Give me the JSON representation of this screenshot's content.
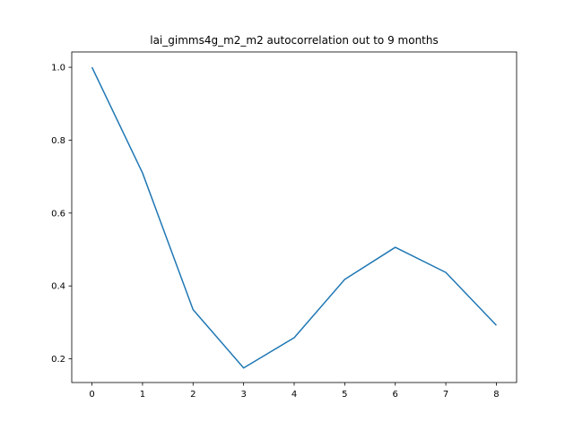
{
  "chart_data": {
    "type": "line",
    "title": "lai_gimms4g_m2_m2 autocorrelation out to 9 months",
    "xlabel": "",
    "ylabel": "",
    "x": [
      0,
      1,
      2,
      3,
      4,
      5,
      6,
      7,
      8
    ],
    "series": [
      {
        "values": [
          1.0,
          0.71,
          0.335,
          0.175,
          0.258,
          0.418,
          0.506,
          0.437,
          0.292
        ],
        "color": "#1f77b4"
      }
    ],
    "xlim": [
      -0.4,
      8.4
    ],
    "ylim": [
      0.135,
      1.042
    ],
    "xticks": [
      "0",
      "1",
      "2",
      "3",
      "4",
      "5",
      "6",
      "7",
      "8"
    ],
    "yticks": [
      "0.2",
      "0.4",
      "0.6",
      "0.8",
      "1.0"
    ],
    "grid": false,
    "legend": "none"
  }
}
